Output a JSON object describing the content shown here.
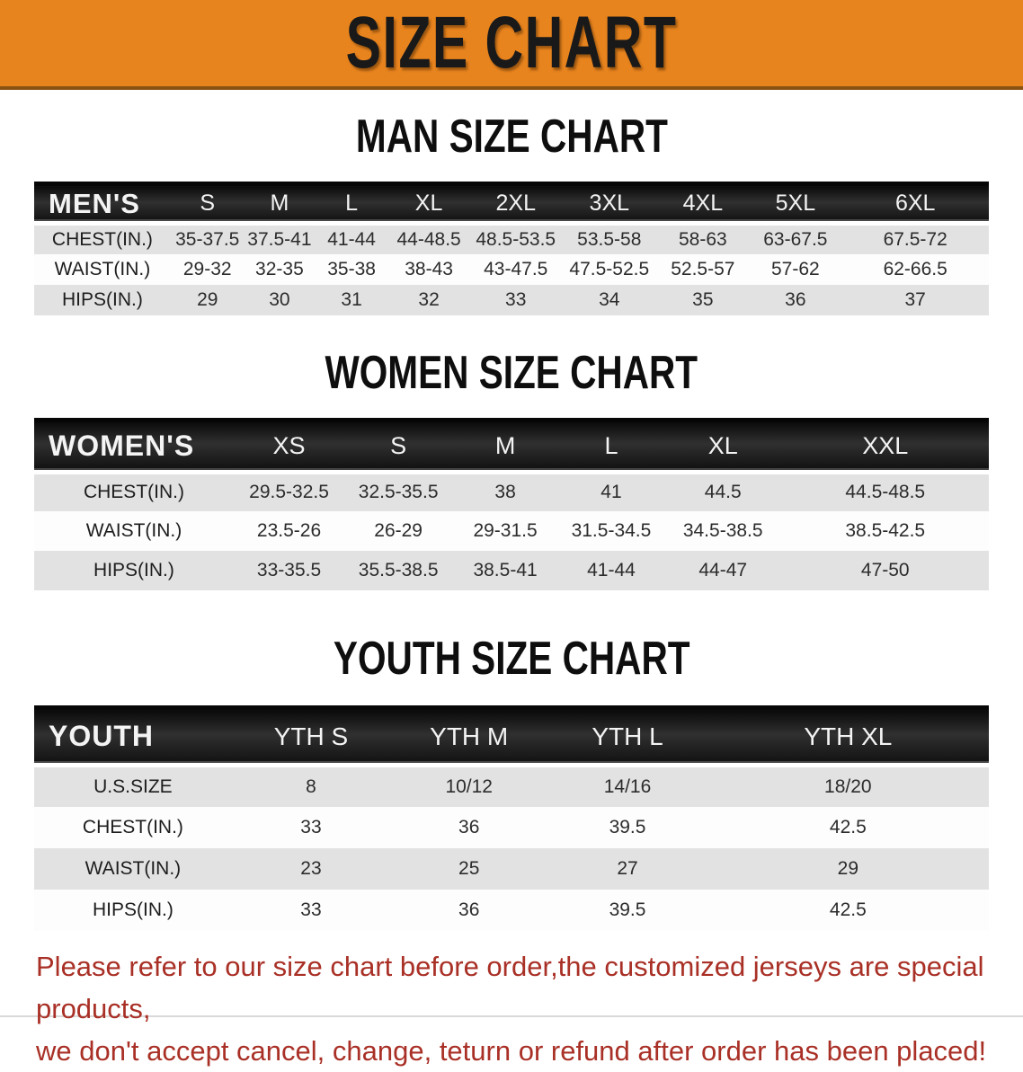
{
  "banner": {
    "title": "SIZE CHART"
  },
  "colors": {
    "banner_orange": "#E8841E",
    "band_black": "#161616",
    "row_gray": "#E2E2E2",
    "row_white": "#FDFDFD",
    "footer_red": "#A93026"
  },
  "sections": [
    {
      "heading": "MAN SIZE CHART",
      "table": {
        "header_label": "MEN'S",
        "columns": [
          "S",
          "M",
          "L",
          "XL",
          "2XL",
          "3XL",
          "4XL",
          "5XL",
          "6XL"
        ],
        "rows": [
          {
            "label": "CHEST(IN.)",
            "values": [
              "35-37.5",
              "37.5-41",
              "41-44",
              "44-48.5",
              "48.5-53.5",
              "53.5-58",
              "58-63",
              "63-67.5",
              "67.5-72"
            ]
          },
          {
            "label": "WAIST(IN.)",
            "values": [
              "29-32",
              "32-35",
              "35-38",
              "38-43",
              "43-47.5",
              "47.5-52.5",
              "52.5-57",
              "57-62",
              "62-66.5"
            ]
          },
          {
            "label": "HIPS(IN.)",
            "values": [
              "29",
              "30",
              "31",
              "32",
              "33",
              "34",
              "35",
              "36",
              "37"
            ]
          }
        ]
      }
    },
    {
      "heading": "WOMEN SIZE CHART",
      "table": {
        "header_label": "WOMEN'S",
        "columns": [
          "XS",
          "S",
          "M",
          "L",
          "XL",
          "XXL"
        ],
        "rows": [
          {
            "label": "CHEST(IN.)",
            "values": [
              "29.5-32.5",
              "32.5-35.5",
              "38",
              "41",
              "44.5",
              "44.5-48.5"
            ]
          },
          {
            "label": "WAIST(IN.)",
            "values": [
              "23.5-26",
              "26-29",
              "29-31.5",
              "31.5-34.5",
              "34.5-38.5",
              "38.5-42.5"
            ]
          },
          {
            "label": "HIPS(IN.)",
            "values": [
              "33-35.5",
              "35.5-38.5",
              "38.5-41",
              "41-44",
              "44-47",
              "47-50"
            ]
          }
        ]
      }
    },
    {
      "heading": "YOUTH SIZE CHART",
      "table": {
        "header_label": "YOUTH",
        "columns": [
          "YTH S",
          "YTH M",
          "YTH L",
          "YTH XL"
        ],
        "rows": [
          {
            "label": "U.S.SIZE",
            "values": [
              "8",
              "10/12",
              "14/16",
              "18/20"
            ]
          },
          {
            "label": "CHEST(IN.)",
            "values": [
              "33",
              "36",
              "39.5",
              "42.5"
            ]
          },
          {
            "label": "WAIST(IN.)",
            "values": [
              "23",
              "25",
              "27",
              "29"
            ]
          },
          {
            "label": "HIPS(IN.)",
            "values": [
              "33",
              "36",
              "39.5",
              "42.5"
            ]
          }
        ]
      }
    }
  ],
  "footer": {
    "line1": "Please refer to our size chart before order,the customized jerseys are special products,",
    "line2": "we don't accept cancel, change, teturn or refund after order has been placed!"
  }
}
